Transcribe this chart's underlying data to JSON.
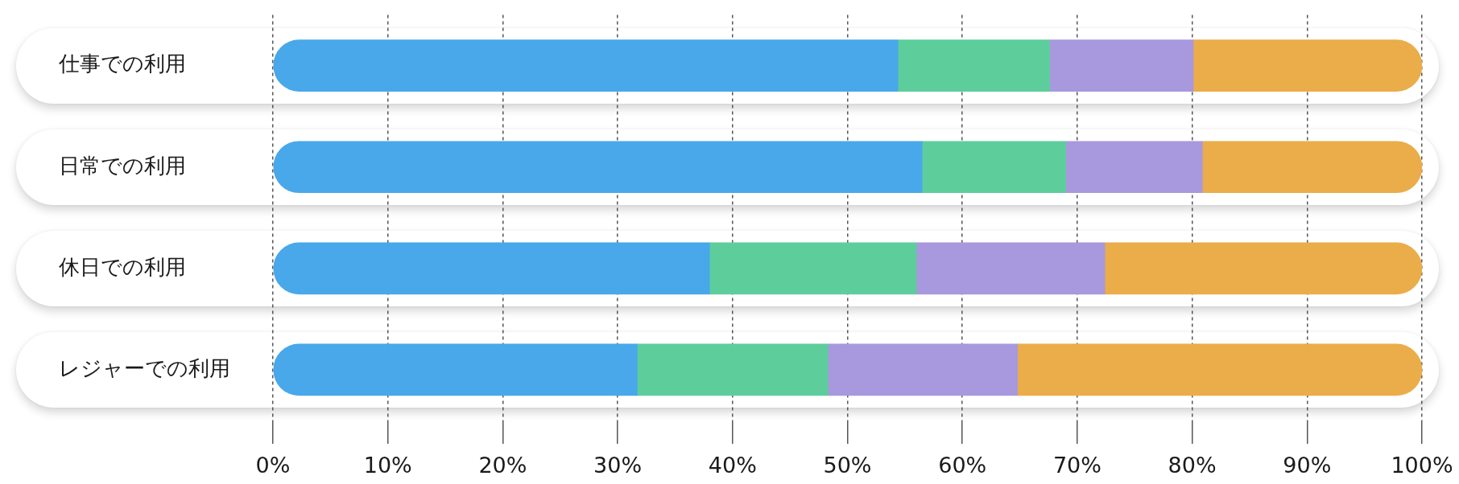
{
  "chart_data": {
    "type": "bar",
    "orientation": "horizontal",
    "stacked": true,
    "categories": [
      "仕事での利用",
      "日常での利用",
      "休日での利用",
      "レジャーでの利用"
    ],
    "series": [
      {
        "color": "#48a8ea",
        "values": [
          54.4,
          56.5,
          38.0,
          31.7
        ]
      },
      {
        "color": "#5ecd9c",
        "values": [
          13.2,
          12.5,
          18.0,
          16.6
        ]
      },
      {
        "color": "#a898de",
        "values": [
          12.5,
          11.9,
          16.4,
          16.5
        ]
      },
      {
        "color": "#eaad4a",
        "values": [
          19.9,
          19.1,
          27.6,
          35.2
        ]
      }
    ],
    "xlim": [
      0,
      100
    ],
    "xticks": [
      {
        "value": 0,
        "label": "0%"
      },
      {
        "value": 10,
        "label": "10%"
      },
      {
        "value": 20,
        "label": "20%"
      },
      {
        "value": 30,
        "label": "30%"
      },
      {
        "value": 40,
        "label": "40%"
      },
      {
        "value": 50,
        "label": "50%"
      },
      {
        "value": 60,
        "label": "60%"
      },
      {
        "value": 70,
        "label": "70%"
      },
      {
        "value": 80,
        "label": "80%"
      },
      {
        "value": 90,
        "label": "90%"
      },
      {
        "value": 100,
        "label": "100%"
      }
    ],
    "grid": "x"
  }
}
